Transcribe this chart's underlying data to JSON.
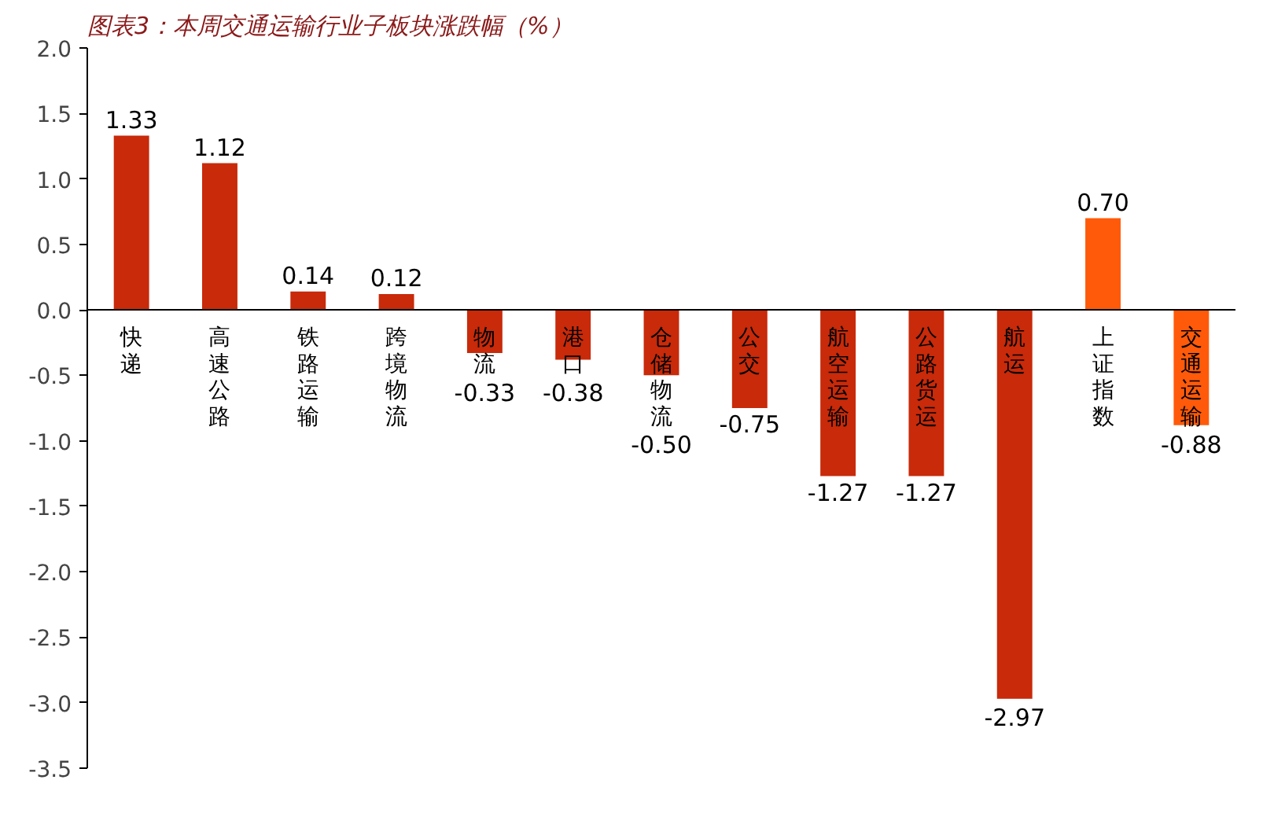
{
  "chart_data": {
    "type": "bar",
    "title": "图表3：本周交通运输行业子板块涨跌幅（%）",
    "categories": [
      "快递",
      "高速公路",
      "铁路运输",
      "跨境物流",
      "物流",
      "港口",
      "仓储物流",
      "公交",
      "航空运输",
      "公路货运",
      "航运",
      "上证指数",
      "交通运输"
    ],
    "values": [
      1.33,
      1.12,
      0.14,
      0.12,
      -0.33,
      -0.38,
      -0.5,
      -0.75,
      -1.27,
      -1.27,
      -2.97,
      0.7,
      -0.88
    ],
    "colors": [
      "#c82a0a",
      "#c82a0a",
      "#c82a0a",
      "#c82a0a",
      "#c82a0a",
      "#c82a0a",
      "#c82a0a",
      "#c82a0a",
      "#c82a0a",
      "#c82a0a",
      "#c82a0a",
      "#ff5a0a",
      "#ff5a0a"
    ],
    "value_labels": [
      "1.33",
      "1.12",
      "0.14",
      "0.12",
      "-0.33",
      "-0.38",
      "-0.50",
      "-0.75",
      "-1.27",
      "-1.27",
      "-2.97",
      "0.70",
      "-0.88"
    ],
    "ylim": [
      -3.5,
      2.0
    ],
    "yticks": [
      {
        "value": -3.5,
        "label": "-3.5"
      },
      {
        "value": -3.0,
        "label": "-3.0"
      },
      {
        "value": -2.5,
        "label": "-2.5"
      },
      {
        "value": -2.0,
        "label": "-2.0"
      },
      {
        "value": -1.5,
        "label": "-1.5"
      },
      {
        "value": -1.0,
        "label": "-1.0"
      },
      {
        "value": -0.5,
        "label": "-0.5"
      },
      {
        "value": 0,
        "label": "0.0"
      },
      {
        "value": 0.5,
        "label": "0.5"
      },
      {
        "value": 1.0,
        "label": "1.0"
      },
      {
        "value": 1.5,
        "label": "1.5"
      },
      {
        "value": 2.0,
        "label": "2.0"
      }
    ],
    "grid": false
  }
}
